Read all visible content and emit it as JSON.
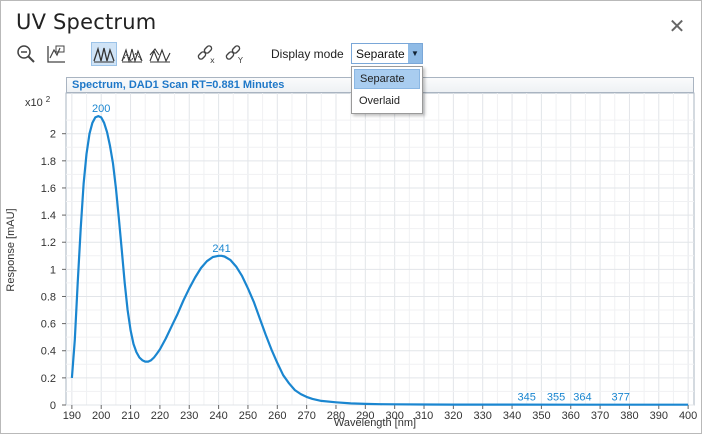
{
  "window": {
    "title": "UV Spectrum",
    "close_icon": "close-icon"
  },
  "toolbar": {
    "icons": [
      "zoom-out-icon",
      "autoscale-icon",
      "separate-mode-icon",
      "overlaid-mode-icon",
      "stacked-mode-icon",
      "link-x-icon",
      "link-y-icon"
    ],
    "display_mode_label": "Display mode",
    "display_mode_value": "Separate"
  },
  "dropdown": {
    "options": [
      "Separate",
      "Overlaid"
    ],
    "selected": "Separate"
  },
  "chart_data": {
    "type": "line",
    "title": "Spectrum, DAD1 Scan RT=0.881 Minutes",
    "xlabel": "Wavelength [nm]",
    "ylabel": "Response [mAU]",
    "y_multiplier": "x10",
    "y_multiplier_exp": "2",
    "xlim": [
      188,
      402
    ],
    "ylim": [
      0,
      2.3
    ],
    "xticks": [
      "190",
      "200",
      "210",
      "220",
      "230",
      "240",
      "250",
      "260",
      "270",
      "280",
      "290",
      "300",
      "310",
      "320",
      "330",
      "340",
      "350",
      "360",
      "370",
      "380",
      "390",
      "400"
    ],
    "yticks": [
      "0",
      "0.2",
      "0.4",
      "0.6",
      "0.8",
      "1",
      "1.2",
      "1.4",
      "1.6",
      "1.8",
      "2"
    ],
    "grid": true,
    "line_color": "#1a86d0",
    "series": [
      {
        "x": [
          190,
          191,
          192,
          193,
          194,
          195,
          196,
          197,
          198,
          199,
          200,
          201,
          202,
          203,
          204,
          205,
          206,
          207,
          208,
          209,
          210,
          211,
          212,
          213,
          214,
          215,
          216,
          217,
          218,
          219,
          220,
          222,
          224,
          226,
          228,
          230,
          232,
          234,
          236,
          238,
          240,
          241,
          242,
          244,
          246,
          248,
          250,
          252,
          254,
          256,
          258,
          260,
          262,
          264,
          266,
          268,
          270,
          272,
          275,
          280,
          285,
          290,
          295,
          300,
          310,
          320,
          340,
          360,
          380,
          400
        ],
        "y": [
          0.2,
          0.48,
          0.9,
          1.3,
          1.63,
          1.85,
          2.0,
          2.08,
          2.12,
          2.13,
          2.12,
          2.08,
          2.01,
          1.91,
          1.78,
          1.6,
          1.38,
          1.14,
          0.9,
          0.7,
          0.55,
          0.45,
          0.39,
          0.35,
          0.33,
          0.32,
          0.32,
          0.33,
          0.35,
          0.38,
          0.41,
          0.49,
          0.58,
          0.67,
          0.77,
          0.86,
          0.94,
          1.01,
          1.06,
          1.09,
          1.1,
          1.1,
          1.095,
          1.07,
          1.02,
          0.95,
          0.86,
          0.76,
          0.64,
          0.52,
          0.41,
          0.31,
          0.22,
          0.16,
          0.11,
          0.08,
          0.06,
          0.045,
          0.03,
          0.02,
          0.012,
          0.008,
          0.006,
          0.005,
          0.004,
          0.003,
          0.003,
          0.002,
          0.002,
          0.002
        ]
      }
    ],
    "peak_labels": [
      {
        "x": 200,
        "y": 2.13,
        "label": "200"
      },
      {
        "x": 241,
        "y": 1.1,
        "label": "241"
      },
      {
        "x": 345,
        "y": 0.003,
        "label": "345"
      },
      {
        "x": 355,
        "y": 0.003,
        "label": "355"
      },
      {
        "x": 364,
        "y": 0.003,
        "label": "364"
      },
      {
        "x": 377,
        "y": 0.002,
        "label": "377"
      }
    ]
  }
}
